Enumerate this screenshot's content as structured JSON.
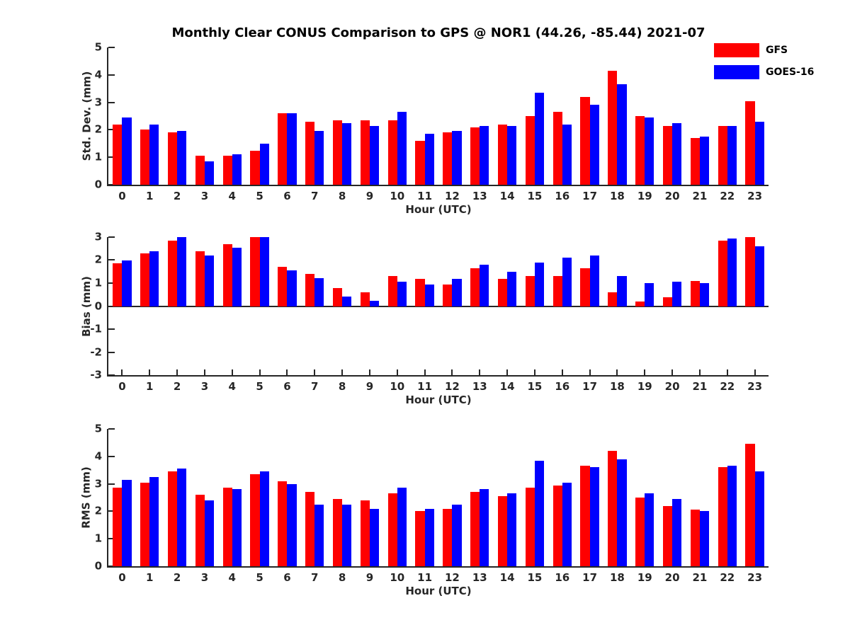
{
  "figure": {
    "title": "Monthly Clear CONUS Comparison to GPS @ NOR1 (44.26, -85.44) 2021-07"
  },
  "legend": {
    "position": "outside-top-right",
    "items": [
      {
        "label": "GFS",
        "color": "#fe0000"
      },
      {
        "label": "GOES-16",
        "color": "#0000fe"
      }
    ]
  },
  "chart_data": [
    {
      "type": "bar",
      "title": "Std. Dev. subplot",
      "ylabel": "Std. Dev. (mm)",
      "xlabel": "Hour (UTC)",
      "ylim": [
        0,
        5
      ],
      "yticks": [
        0,
        1,
        2,
        3,
        4,
        5
      ],
      "grid": false,
      "categories": [
        "0",
        "1",
        "2",
        "3",
        "4",
        "5",
        "6",
        "7",
        "8",
        "9",
        "10",
        "11",
        "12",
        "13",
        "14",
        "15",
        "16",
        "17",
        "18",
        "19",
        "20",
        "21",
        "22",
        "23"
      ],
      "series": [
        {
          "name": "GFS",
          "values": [
            2.2,
            2.0,
            1.9,
            1.05,
            1.05,
            1.25,
            2.6,
            2.3,
            2.35,
            2.35,
            2.35,
            1.6,
            1.9,
            2.1,
            2.2,
            2.5,
            2.65,
            3.2,
            4.15,
            2.5,
            2.15,
            1.7,
            2.15,
            3.05
          ],
          "color": "#fe0000"
        },
        {
          "name": "GOES-16",
          "values": [
            2.45,
            2.2,
            1.95,
            0.85,
            1.1,
            1.5,
            2.6,
            1.95,
            2.25,
            2.15,
            2.65,
            1.85,
            1.95,
            2.15,
            2.15,
            3.35,
            2.2,
            2.9,
            3.65,
            2.45,
            2.25,
            1.75,
            2.15,
            2.3
          ],
          "color": "#0000fe"
        }
      ]
    },
    {
      "type": "bar",
      "title": "Bias subplot",
      "ylabel": "Bias (mm)",
      "xlabel": "Hour (UTC)",
      "ylim": [
        -3,
        3
      ],
      "yticks": [
        -3,
        -2,
        -1,
        0,
        1,
        2,
        3
      ],
      "grid": false,
      "categories": [
        "0",
        "1",
        "2",
        "3",
        "4",
        "5",
        "6",
        "7",
        "8",
        "9",
        "10",
        "11",
        "12",
        "13",
        "14",
        "15",
        "16",
        "17",
        "18",
        "19",
        "20",
        "21",
        "22",
        "23"
      ],
      "series": [
        {
          "name": "GFS",
          "values": [
            1.85,
            2.3,
            2.85,
            2.4,
            2.7,
            3.0,
            1.7,
            1.4,
            0.78,
            0.6,
            1.3,
            1.2,
            0.95,
            1.65,
            1.2,
            1.3,
            1.3,
            1.65,
            0.6,
            0.2,
            0.4,
            1.1,
            2.85,
            3.0
          ],
          "color": "#fe0000"
        },
        {
          "name": "GOES-16",
          "values": [
            2.0,
            2.4,
            3.0,
            2.2,
            2.55,
            3.0,
            1.55,
            1.22,
            0.42,
            0.22,
            1.05,
            0.95,
            1.2,
            1.8,
            1.5,
            1.9,
            2.1,
            2.2,
            1.3,
            1.0,
            1.05,
            1.0,
            2.95,
            2.6
          ],
          "color": "#0000fe"
        }
      ]
    },
    {
      "type": "bar",
      "title": "RMS subplot",
      "ylabel": "RMS (mm)",
      "xlabel": "Hour (UTC)",
      "ylim": [
        0,
        5
      ],
      "yticks": [
        0,
        1,
        2,
        3,
        4,
        5
      ],
      "grid": false,
      "categories": [
        "0",
        "1",
        "2",
        "3",
        "4",
        "5",
        "6",
        "7",
        "8",
        "9",
        "10",
        "11",
        "12",
        "13",
        "14",
        "15",
        "16",
        "17",
        "18",
        "19",
        "20",
        "21",
        "22",
        "23"
      ],
      "series": [
        {
          "name": "GFS",
          "values": [
            2.85,
            3.05,
            3.45,
            2.6,
            2.85,
            3.35,
            3.1,
            2.7,
            2.45,
            2.4,
            2.65,
            2.0,
            2.1,
            2.7,
            2.55,
            2.85,
            2.95,
            3.65,
            4.2,
            2.5,
            2.2,
            2.05,
            3.6,
            4.45
          ],
          "color": "#fe0000"
        },
        {
          "name": "GOES-16",
          "values": [
            3.15,
            3.25,
            3.55,
            2.4,
            2.8,
            3.45,
            3.0,
            2.25,
            2.25,
            2.1,
            2.85,
            2.1,
            2.25,
            2.8,
            2.65,
            3.85,
            3.05,
            3.6,
            3.9,
            2.65,
            2.45,
            2.0,
            3.65,
            3.45
          ],
          "color": "#0000fe"
        }
      ]
    }
  ]
}
